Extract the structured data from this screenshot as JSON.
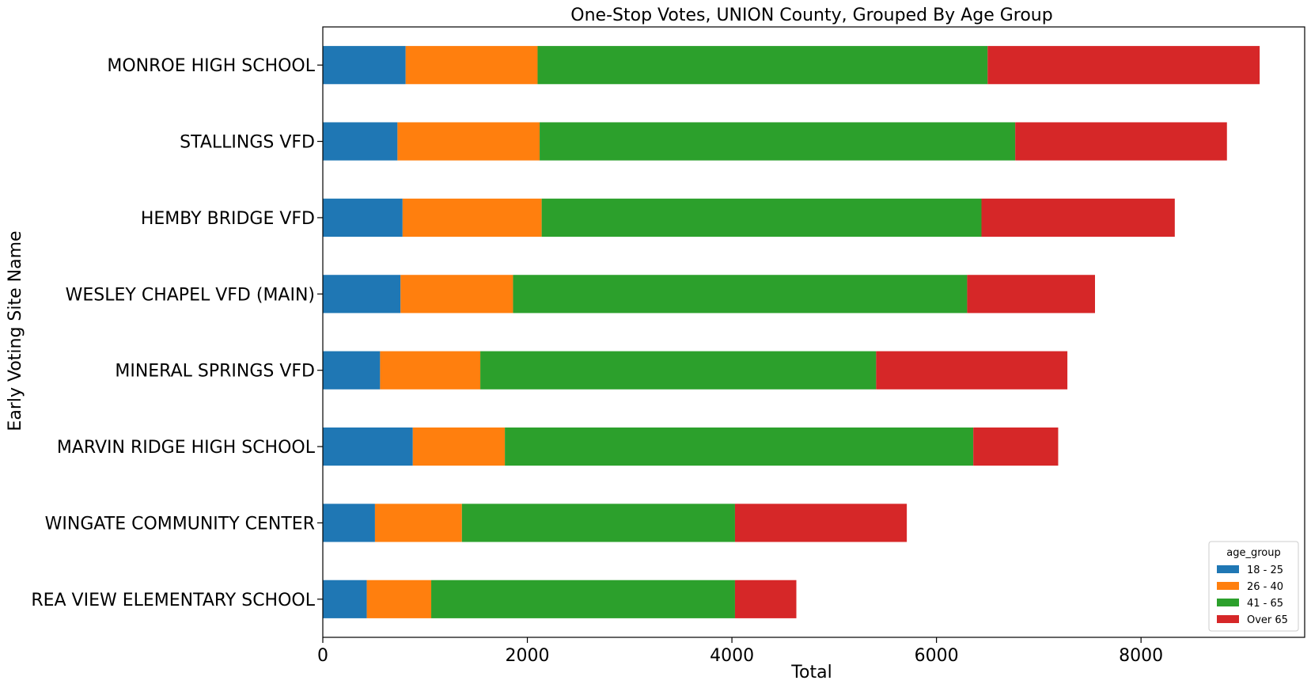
{
  "chart_data": {
    "type": "bar",
    "orientation": "horizontal",
    "stacked": true,
    "title": "One-Stop Votes, UNION County, Grouped By Age Group",
    "xlabel": "Total",
    "ylabel": "Early Voting Site Name",
    "xlim": [
      0,
      9600
    ],
    "xticks": [
      0,
      2000,
      4000,
      6000,
      8000
    ],
    "categories": [
      "MONROE HIGH SCHOOL",
      "STALLINGS VFD",
      "HEMBY BRIDGE VFD",
      "WESLEY CHAPEL VFD (MAIN)",
      "MINERAL SPRINGS VFD",
      "MARVIN RIDGE HIGH SCHOOL",
      "WINGATE COMMUNITY CENTER",
      "REA VIEW ELEMENTARY SCHOOL"
    ],
    "series": [
      {
        "name": "18 - 25",
        "color": "#1f77b4",
        "values": [
          810,
          730,
          780,
          760,
          560,
          880,
          510,
          430
        ]
      },
      {
        "name": "26 - 40",
        "color": "#ff7f0e",
        "values": [
          1290,
          1390,
          1360,
          1100,
          980,
          900,
          850,
          630
        ]
      },
      {
        "name": "41 - 65",
        "color": "#2ca02c",
        "values": [
          4400,
          4650,
          4300,
          4440,
          3870,
          4580,
          2670,
          2970
        ]
      },
      {
        "name": "Over 65",
        "color": "#d62728",
        "values": [
          2660,
          2070,
          1890,
          1250,
          1870,
          830,
          1680,
          600
        ]
      }
    ],
    "legend": {
      "title": "age_group",
      "position": "bottom-right"
    },
    "grid": false
  }
}
